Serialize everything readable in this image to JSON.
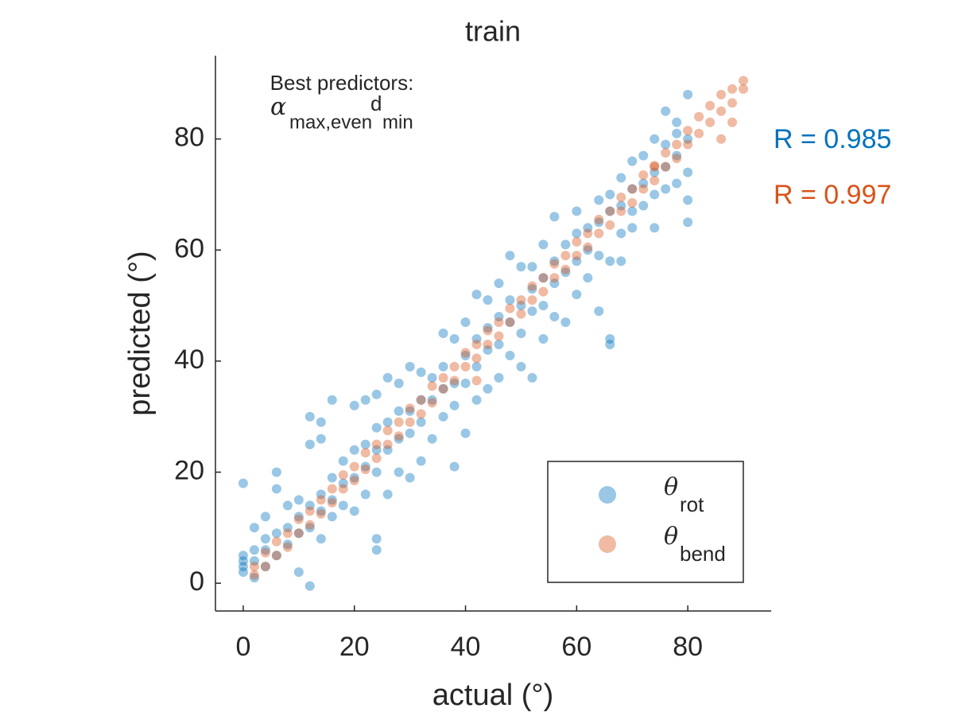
{
  "chart_data": {
    "type": "scatter",
    "title": "train",
    "xlabel": "actual (°)",
    "ylabel": "predicted (°)",
    "xlim": [
      -5,
      95
    ],
    "ylim": [
      -5,
      95
    ],
    "xticks": [
      0,
      20,
      40,
      60,
      80
    ],
    "yticks": [
      0,
      20,
      40,
      60,
      80
    ],
    "grid": false,
    "legend": "southeast",
    "annotation": {
      "line1": "Best predictors:",
      "formula": [
        "α",
        "max,even",
        "d",
        "min"
      ]
    },
    "series": [
      {
        "legend_symbol": "θ",
        "legend_subscript": "rot",
        "color": "#0072BD",
        "r_label": "R = 0.985",
        "x": [
          0,
          0,
          0,
          0,
          0,
          2,
          2,
          2,
          2,
          4,
          4,
          4,
          4,
          6,
          6,
          6,
          6,
          8,
          8,
          8,
          10,
          10,
          10,
          10,
          12,
          12,
          12,
          12,
          12,
          14,
          14,
          14,
          14,
          14,
          16,
          16,
          16,
          16,
          18,
          18,
          18,
          20,
          20,
          20,
          20,
          22,
          22,
          22,
          22,
          24,
          24,
          24,
          24,
          24,
          24,
          26,
          26,
          26,
          26,
          28,
          28,
          28,
          28,
          30,
          30,
          30,
          30,
          32,
          32,
          32,
          32,
          34,
          34,
          34,
          36,
          36,
          36,
          36,
          38,
          38,
          38,
          38,
          40,
          40,
          40,
          40,
          42,
          42,
          42,
          42,
          44,
          44,
          44,
          44,
          46,
          46,
          46,
          46,
          48,
          48,
          48,
          48,
          50,
          50,
          50,
          50,
          52,
          52,
          52,
          52,
          54,
          54,
          54,
          54,
          56,
          56,
          56,
          56,
          58,
          58,
          58,
          60,
          60,
          60,
          60,
          62,
          62,
          62,
          64,
          64,
          64,
          64,
          66,
          66,
          66,
          66,
          66,
          68,
          68,
          68,
          68,
          70,
          70,
          70,
          70,
          72,
          72,
          72,
          74,
          74,
          74,
          74,
          76,
          76,
          76,
          76,
          78,
          78,
          78,
          78,
          80,
          80,
          80,
          80,
          80
        ],
        "values": [
          2,
          3,
          4,
          5,
          18,
          1,
          4,
          6,
          10,
          3,
          6,
          8,
          12,
          5,
          9,
          17,
          20,
          7,
          10,
          14,
          2,
          9,
          12,
          15,
          -0.5,
          10,
          14,
          25,
          30,
          8,
          13,
          16,
          26,
          29,
          12,
          15,
          19,
          33,
          14,
          18,
          22,
          13,
          19,
          24,
          32,
          16,
          21,
          25,
          33,
          6,
          8,
          20,
          24,
          28,
          34,
          16,
          24,
          29,
          37,
          20,
          26,
          31,
          36,
          19,
          27,
          31,
          39,
          22,
          29,
          33,
          38,
          26,
          33,
          37,
          30,
          35,
          39,
          45,
          21,
          32,
          36,
          44,
          27,
          36,
          41,
          47,
          33,
          39,
          44,
          52,
          35,
          42,
          46,
          51,
          37,
          43,
          48,
          54,
          41,
          47,
          51,
          59,
          39,
          45,
          50,
          57,
          37,
          49,
          53,
          57,
          44,
          50,
          55,
          61,
          48,
          54,
          58,
          66,
          47,
          56,
          61,
          52,
          58,
          63,
          67,
          55,
          60,
          64,
          49,
          59,
          65,
          69,
          43,
          44,
          58,
          67,
          70,
          58,
          63,
          68,
          73,
          64,
          67,
          71,
          76,
          68,
          72,
          77,
          64,
          70,
          74,
          80,
          71,
          75,
          79,
          85,
          72,
          77,
          81,
          83,
          65,
          69,
          74,
          80,
          88
        ]
      },
      {
        "legend_symbol": "θ",
        "legend_subscript": "bend",
        "color": "#D95319",
        "r_label": "R = 0.997",
        "x": [
          2,
          2,
          4,
          4,
          6,
          6,
          8,
          8,
          10,
          10,
          12,
          12,
          14,
          14,
          16,
          16,
          18,
          18,
          20,
          20,
          22,
          22,
          24,
          24,
          26,
          26,
          28,
          28,
          30,
          30,
          32,
          32,
          34,
          34,
          36,
          36,
          38,
          38,
          40,
          40,
          42,
          42,
          44,
          44,
          46,
          46,
          48,
          48,
          50,
          50,
          52,
          52,
          54,
          54,
          56,
          56,
          58,
          58,
          60,
          60,
          62,
          62,
          64,
          64,
          66,
          66,
          68,
          68,
          70,
          70,
          72,
          72,
          74,
          74,
          76,
          76,
          78,
          78,
          80,
          80,
          82,
          82,
          84,
          84,
          86,
          86,
          88,
          88,
          90,
          90,
          42,
          74,
          86,
          88
        ],
        "values": [
          1.5,
          3,
          3,
          5.5,
          5,
          7.5,
          6.5,
          9,
          9,
          11.5,
          10.5,
          13,
          12.5,
          15,
          14.5,
          17,
          17,
          19.5,
          18.5,
          21,
          20.5,
          23.5,
          22.5,
          25,
          25,
          27.5,
          26.5,
          29,
          29,
          31.5,
          30.5,
          33,
          32.5,
          35.5,
          35,
          37,
          36.5,
          39,
          39,
          41.5,
          40.5,
          43,
          43,
          45.5,
          44.5,
          47,
          47,
          49.5,
          48.5,
          51,
          51,
          53.5,
          52.5,
          55,
          55,
          57.5,
          56.5,
          59,
          59,
          61.5,
          60.5,
          63,
          63,
          65.5,
          64.5,
          67,
          67,
          69.5,
          68.5,
          71,
          71,
          73.5,
          72.5,
          75,
          75,
          77.5,
          76.5,
          79,
          79,
          81.5,
          81,
          84,
          83,
          86,
          85,
          88,
          86.5,
          89,
          89,
          90.5,
          36.5,
          75.2,
          80,
          83
        ]
      }
    ]
  }
}
